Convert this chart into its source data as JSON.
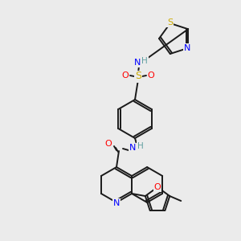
{
  "bg_color": "#ebebeb",
  "bond_color": "#1a1a1a",
  "colors": {
    "N": "#0000ff",
    "O": "#ff0000",
    "S_thz": "#ccaa00",
    "S_sul": "#ccaa00",
    "H": "#5f9ea0"
  },
  "lw": 1.4
}
